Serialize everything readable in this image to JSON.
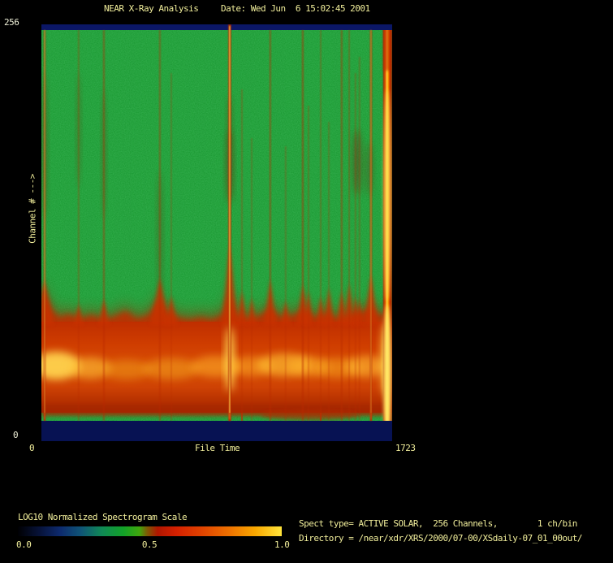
{
  "header": {
    "title": "NEAR X-Ray Analysis",
    "date": "Date: Wed Jun  6 15:02:45 2001"
  },
  "plot": {
    "y_axis": {
      "max_label": "256",
      "min_label": "0",
      "title": "Channel # --->"
    },
    "x_axis": {
      "min_label": "0",
      "max_label": "1723",
      "title": "File Time"
    }
  },
  "colorbar": {
    "title": "LOG10 Normalized Spectrogram Scale",
    "tick_labels": [
      "0.0",
      "0.5",
      "1.0"
    ],
    "gradient_stops": [
      "#000003 0%",
      "#071238 8%",
      "#0d2a6e 16%",
      "#0f5577 24%",
      "#108a55 32%",
      "#12a228 40%",
      "#3fa70e 46%",
      "#7e5a04 49%",
      "#b01600 53%",
      "#d42000 60%",
      "#e14400 70%",
      "#ee7100 80%",
      "#f9a800 90%",
      "#ffe43c 100%"
    ]
  },
  "info": {
    "spect_type": "Spect type= ACTIVE SOLAR,  256 Channels,        1 ch/bin",
    "directory": "Directory = /near/xdr/XRS/2000/07-00/XSdaily-07_01_00out/"
  },
  "colors": {
    "background": "#000000",
    "text": "#f1ee9b",
    "text_axis": "#eff0d8",
    "navy_band": "#0b1766",
    "navy_band_bottom": "#071253",
    "plot_green": "#0f9224",
    "streak_red": "#b82a00",
    "flame_red": "#c93200",
    "core_yellow": "#ffd84d",
    "smudge_dark_red": "#6f2408",
    "strip_red": "#c22c00"
  },
  "chart_data": {
    "type": "heatmap",
    "subtype": "spectrogram",
    "title": "NEAR X-Ray Analysis",
    "xlabel": "File Time",
    "ylabel": "Channel #",
    "x_range": [
      0,
      1723
    ],
    "y_range": [
      0,
      256
    ],
    "value_scale": {
      "label": "LOG10 Normalized Spectrogram Scale",
      "range": [
        0.0,
        1.0
      ]
    },
    "background_value": 0.45,
    "solar_continuum_band": {
      "channel_range": [
        5,
        70
      ],
      "value_range": [
        0.55,
        0.85
      ],
      "description": "Bright red-orange horizontal band of solar X-ray continuum in the low channels with yellow hot spots; fuzzy flame-like upper edge; dark blue no-data bands at channel extremes"
    },
    "flare_streaks": [
      {
        "t": 16,
        "w": 3,
        "op": 0.5,
        "top": 7,
        "core": true,
        "core_op": 0.45,
        "flame_h": 55,
        "flame_w": 11,
        "strip": true
      },
      {
        "t": 183,
        "w": 2,
        "op": 0.3,
        "top": 7,
        "flame_h": 26,
        "flame_w": 6
      },
      {
        "t": 307,
        "w": 2.5,
        "op": 0.38,
        "top": 7,
        "flame_h": 32,
        "flame_w": 7
      },
      {
        "t": 582,
        "w": 2.5,
        "op": 0.35,
        "top": 7,
        "flame_h": 58,
        "flame_w": 12
      },
      {
        "t": 638,
        "w": 2,
        "op": 0.25,
        "top": 60,
        "flame_h": 36,
        "flame_w": 8
      },
      {
        "t": 925,
        "w": 3.5,
        "op": 0.95,
        "top": 0,
        "core": true,
        "core_op": 0.95,
        "flame_h": 100,
        "flame_w": 10,
        "strip": true
      },
      {
        "t": 985,
        "w": 2,
        "op": 0.3,
        "top": 80,
        "flame_h": 42,
        "flame_w": 7,
        "strip": true
      },
      {
        "t": 1033,
        "w": 2,
        "op": 0.25,
        "top": 140,
        "flame_h": 34,
        "flame_w": 6
      },
      {
        "t": 1124,
        "w": 2.5,
        "op": 0.4,
        "top": 7,
        "flame_h": 56,
        "flame_w": 8
      },
      {
        "t": 1200,
        "w": 2,
        "op": 0.25,
        "top": 150,
        "flame_h": 30,
        "flame_w": 6
      },
      {
        "t": 1284,
        "w": 2.5,
        "op": 0.45,
        "top": 7,
        "flame_h": 50,
        "flame_w": 8
      },
      {
        "t": 1312,
        "w": 2,
        "op": 0.3,
        "top": 100,
        "flame_h": 42,
        "flame_w": 6
      },
      {
        "t": 1372,
        "w": 2,
        "op": 0.3,
        "top": 7,
        "flame_h": 36,
        "flame_w": 6,
        "strip": true
      },
      {
        "t": 1412,
        "w": 2,
        "op": 0.28,
        "top": 120,
        "flame_h": 46,
        "flame_w": 7
      },
      {
        "t": 1475,
        "w": 2.5,
        "op": 0.4,
        "top": 7,
        "flame_h": 42,
        "flame_w": 7
      },
      {
        "t": 1512,
        "w": 2,
        "op": 0.35,
        "top": 7,
        "flame_h": 52,
        "flame_w": 7
      },
      {
        "t": 1543,
        "w": 2,
        "op": 0.28,
        "top": 60,
        "flame_h": 36,
        "flame_w": 5
      },
      {
        "t": 1563,
        "w": 2,
        "op": 0.28,
        "top": 40,
        "flame_h": 30,
        "flame_w": 5
      },
      {
        "t": 1619,
        "w": 3,
        "op": 0.6,
        "top": 7,
        "core": true,
        "core_op": 0.4,
        "flame_h": 62,
        "flame_w": 9,
        "strip": true
      }
    ],
    "edge_event": {
      "t_range": [
        1680,
        1723
      ],
      "value": 0.95,
      "description": "very bright full-height red/yellow column at right edge of spectrogram"
    },
    "render": {
      "smudges": [
        [
          232,
          175,
          4,
          45,
          0.55
        ],
        [
          232,
          118,
          3,
          30,
          0.3
        ],
        [
          389,
          170,
          5,
          40,
          0.45
        ],
        [
          404,
          178,
          4,
          33,
          0.33
        ],
        [
          46,
          130,
          2.5,
          70,
          0.28
        ],
        [
          77,
          160,
          2.5,
          80,
          0.3
        ],
        [
          4,
          150,
          3,
          90,
          0.35
        ],
        [
          146,
          260,
          3,
          80,
          0.3
        ]
      ],
      "glows": [
        [
          18,
          420,
          30,
          17,
          "#ffd24e",
          0.95
        ],
        [
          60,
          423,
          26,
          13,
          "#ffc235",
          0.6
        ],
        [
          105,
          425,
          30,
          12,
          "#f09d18",
          0.5
        ],
        [
          160,
          424,
          34,
          13,
          "#f5a81e",
          0.5
        ],
        [
          215,
          421,
          30,
          13,
          "#ffb026",
          0.55
        ],
        [
          232,
          412,
          5,
          40,
          "#ffe158",
          0.95
        ],
        [
          258,
          421,
          26,
          12,
          "#ffb227",
          0.5
        ],
        [
          300,
          419,
          34,
          14,
          "#ffc133",
          0.65
        ],
        [
          330,
          421,
          25,
          12,
          "#ffb72a",
          0.5
        ],
        [
          365,
          423,
          30,
          12,
          "#f8a81f",
          0.5
        ],
        [
          400,
          421,
          26,
          13,
          "#ffb930",
          0.6
        ],
        [
          425,
          412,
          6,
          46,
          "#ffd94e",
          0.9
        ]
      ]
    }
  }
}
